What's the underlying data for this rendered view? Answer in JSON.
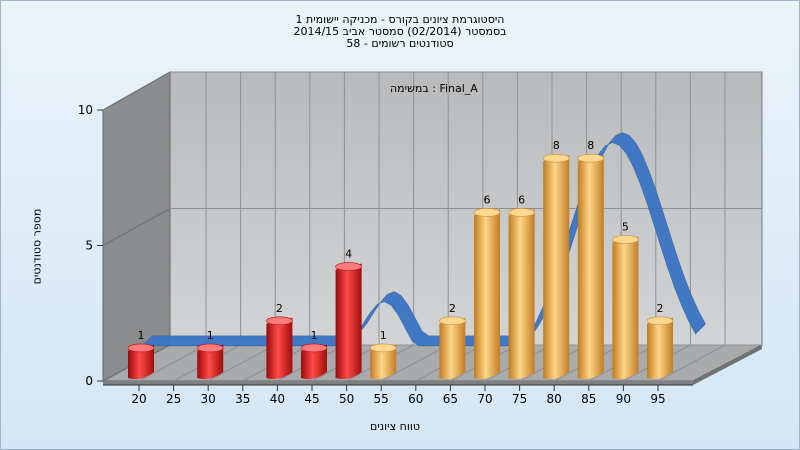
{
  "chart_data": {
    "type": "bar",
    "title_lines": [
      "היסטוגרמת ציונים בקורס - מכניקה יישומית 1",
      "בסמסטר  (02/2014)  סמסטר אביב 2014/15",
      "סטודנטים רשומים - 58"
    ],
    "inner_label": "במשימה : Final_A",
    "xlabel": "טווח ציונים",
    "ylabel": "מספר סטודנטים",
    "x_ticks": [
      "20",
      "25",
      "30",
      "35",
      "40",
      "45",
      "50",
      "55",
      "60",
      "65",
      "70",
      "75",
      "80",
      "85",
      "90",
      "95"
    ],
    "y_ticks": [
      "0",
      "5",
      "10"
    ],
    "ylim": [
      0,
      10
    ],
    "categories": [
      "20-25",
      "30-35",
      "40-45",
      "45-50",
      "50-55",
      "55-60",
      "65-70",
      "70-75",
      "75-80",
      "80-85",
      "85-90",
      "90-95",
      "95-100"
    ],
    "bin_start": [
      20,
      30,
      40,
      45,
      50,
      55,
      65,
      70,
      75,
      80,
      85,
      90,
      95
    ],
    "values": [
      1,
      1,
      2,
      1,
      4,
      1,
      2,
      6,
      6,
      8,
      8,
      5,
      2
    ],
    "colors": {
      "fail": "#e01818",
      "pass": "#e8a040",
      "curve": "#3a74c4",
      "curve_dark": "#5a6f86",
      "back_wall": "#c4c6c8",
      "side_wall": "#8a8c8e",
      "floor": "#a8aaac"
    },
    "pass_threshold": 55,
    "grid": true,
    "legend": "none"
  }
}
